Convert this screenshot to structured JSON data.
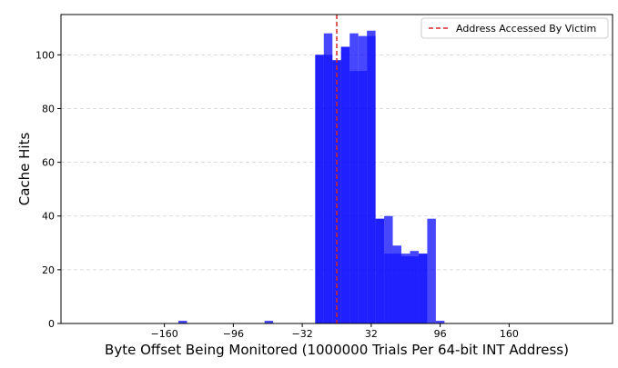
{
  "chart_data": {
    "type": "bar",
    "xlabel": "Byte Offset Being Monitored (1000000 Trials Per 64-bit INT Address)",
    "ylabel": "Cache Hits",
    "xlim": [
      -256,
      256
    ],
    "ylim": [
      0,
      115
    ],
    "xticks": [
      -160,
      -96,
      -32,
      32,
      96,
      160
    ],
    "xtick_labels": [
      "−160",
      "−96",
      "−32",
      "32",
      "96",
      "160"
    ],
    "yticks": [
      0,
      20,
      40,
      60,
      80,
      100
    ],
    "ytick_labels": [
      "0",
      "20",
      "40",
      "60",
      "80",
      "100"
    ],
    "grid": "y-dashed",
    "legend": {
      "placement": "top-right",
      "entries": [
        "Address Accessed By Victim"
      ]
    },
    "victim_line_x": 0,
    "colors": {
      "bar": "#0000ff",
      "victim_line": "#d62728"
    },
    "bar_width": 8,
    "bars": [
      {
        "x": -143,
        "value": 1
      },
      {
        "x": -63,
        "value": 1
      },
      {
        "x": -16,
        "value": 100
      },
      {
        "x": -8,
        "value": 108
      },
      {
        "x": 0,
        "value": 98
      },
      {
        "x": 8,
        "value": 103
      },
      {
        "x": 16,
        "value": 108
      },
      {
        "x": 24,
        "value": 107
      },
      {
        "x": 32,
        "value": 109
      },
      {
        "x": 40,
        "value": 39
      },
      {
        "x": 48,
        "value": 40
      },
      {
        "x": 56,
        "value": 29
      },
      {
        "x": 64,
        "value": 26
      },
      {
        "x": 72,
        "value": 27
      },
      {
        "x": 80,
        "value": 26
      },
      {
        "x": 88,
        "value": 39
      },
      {
        "x": 96,
        "value": 1
      }
    ],
    "inner_bars": [
      {
        "x": -16,
        "value": 100
      },
      {
        "x": -8,
        "value": 100
      },
      {
        "x": 0,
        "value": 98
      },
      {
        "x": 8,
        "value": 103
      },
      {
        "x": 16,
        "value": 94
      },
      {
        "x": 24,
        "value": 94
      },
      {
        "x": 32,
        "value": 107
      },
      {
        "x": 40,
        "value": 39
      },
      {
        "x": 48,
        "value": 26
      },
      {
        "x": 56,
        "value": 26
      },
      {
        "x": 64,
        "value": 25
      },
      {
        "x": 72,
        "value": 25
      },
      {
        "x": 80,
        "value": 26
      }
    ]
  }
}
